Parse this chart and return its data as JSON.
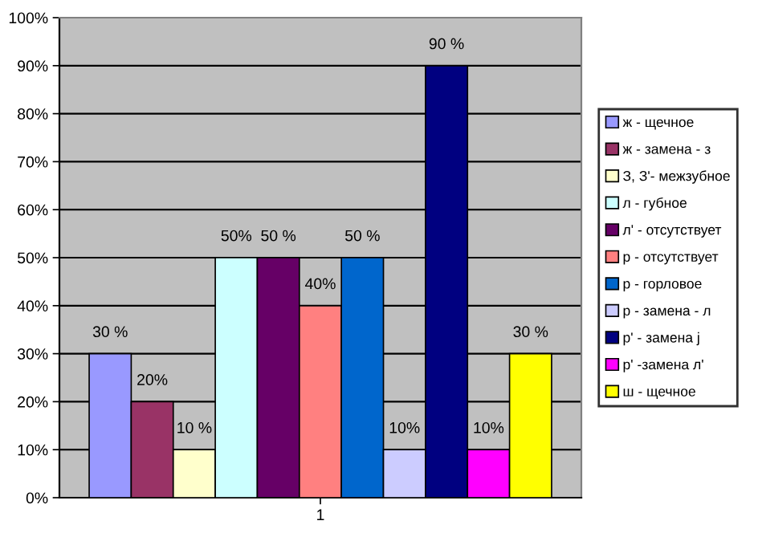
{
  "chart_data": {
    "type": "bar",
    "categories": [
      "1"
    ],
    "series": [
      {
        "name": "ж - щечное",
        "color": "#9999ff",
        "values": [
          30
        ],
        "value_labels": [
          "30 %"
        ]
      },
      {
        "name": "ж - замена - з",
        "color": "#993366",
        "values": [
          20
        ],
        "value_labels": [
          "20%"
        ]
      },
      {
        "name": "З, З'- межзубное",
        "color": "#ffffcc",
        "values": [
          10
        ],
        "value_labels": [
          "10 %"
        ]
      },
      {
        "name": "л - губное",
        "color": "#ccffff",
        "values": [
          50
        ],
        "value_labels": [
          "50%"
        ]
      },
      {
        "name": "л' - отсутствует",
        "color": "#660066",
        "values": [
          50
        ],
        "value_labels": [
          "50 %"
        ]
      },
      {
        "name": "р - отсутствует",
        "color": "#ff8080",
        "values": [
          40
        ],
        "value_labels": [
          "40%"
        ]
      },
      {
        "name": "р - горловое",
        "color": "#0066cc",
        "values": [
          50
        ],
        "value_labels": [
          "50 %"
        ]
      },
      {
        "name": "р - замена - л",
        "color": "#ccccff",
        "values": [
          10
        ],
        "value_labels": [
          "10%"
        ]
      },
      {
        "name": "р' - замена j",
        "color": "#000080",
        "values": [
          90
        ],
        "value_labels": [
          "90 %"
        ]
      },
      {
        "name": "р' -замена л'",
        "color": "#ff00ff",
        "values": [
          10
        ],
        "value_labels": [
          "10%"
        ]
      },
      {
        "name": "ш - щечное",
        "color": "#ffff00",
        "values": [
          30
        ],
        "value_labels": [
          "30 %"
        ]
      }
    ],
    "ylim": [
      0,
      100
    ],
    "yticks": [
      {
        "value": 0,
        "label": "0%"
      },
      {
        "value": 10,
        "label": "10%"
      },
      {
        "value": 20,
        "label": "20%"
      },
      {
        "value": 30,
        "label": "30%"
      },
      {
        "value": 40,
        "label": "40%"
      },
      {
        "value": 50,
        "label": "50%"
      },
      {
        "value": 60,
        "label": "60%"
      },
      {
        "value": 70,
        "label": "70%"
      },
      {
        "value": 80,
        "label": "80%"
      },
      {
        "value": 90,
        "label": "90%"
      },
      {
        "value": 100,
        "label": "100%"
      }
    ],
    "grid": "y",
    "legend": "right"
  }
}
